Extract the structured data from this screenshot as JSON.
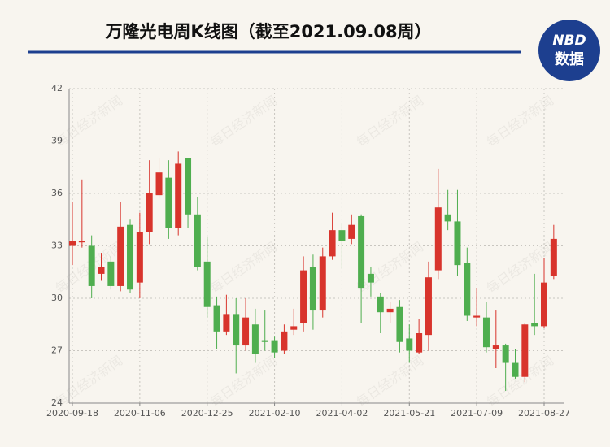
{
  "chart_data": {
    "type": "candlestick",
    "title": "万隆光电周K线图（截至2021.09.08周）",
    "logo": {
      "top": "NBD",
      "bottom": "数据"
    },
    "watermark": "每日经济新闻",
    "categories": [
      "2020-09-18",
      null,
      null,
      null,
      null,
      null,
      null,
      "2020-11-06",
      null,
      null,
      null,
      null,
      null,
      null,
      "2020-12-25",
      null,
      null,
      null,
      null,
      null,
      null,
      "2021-02-10",
      null,
      null,
      null,
      null,
      null,
      null,
      "2021-04-02",
      null,
      null,
      null,
      null,
      null,
      null,
      "2021-05-21",
      null,
      null,
      null,
      null,
      null,
      null,
      "2021-07-09",
      null,
      null,
      null,
      null,
      null,
      null,
      "2021-08-27",
      null
    ],
    "open": [
      33.0,
      33.2,
      33.0,
      31.4,
      32.1,
      30.7,
      34.2,
      30.9,
      33.8,
      35.9,
      36.9,
      34.0,
      38.0,
      34.8,
      32.1,
      29.6,
      28.1,
      29.1,
      27.3,
      28.5,
      27.6,
      27.6,
      27.0,
      28.2,
      28.6,
      31.8,
      29.3,
      32.4,
      33.9,
      33.4,
      34.7,
      31.4,
      30.1,
      29.2,
      29.5,
      27.7,
      26.9,
      27.9,
      31.6,
      34.8,
      34.4,
      32.0,
      28.9,
      28.9,
      27.1,
      27.3,
      26.3,
      25.5,
      28.6,
      28.4,
      31.3
    ],
    "high": [
      35.5,
      36.8,
      33.6,
      32.6,
      32.4,
      35.5,
      34.5,
      34.9,
      37.9,
      38.0,
      37.9,
      38.4,
      38.0,
      35.8,
      33.5,
      30.1,
      30.2,
      30.0,
      30.0,
      29.4,
      29.3,
      27.8,
      28.5,
      29.4,
      32.4,
      32.5,
      32.9,
      34.9,
      34.3,
      34.8,
      34.8,
      31.8,
      30.3,
      29.8,
      29.9,
      28.5,
      28.8,
      32.1,
      37.4,
      36.2,
      36.2,
      32.9,
      30.6,
      29.8,
      29.3,
      27.4,
      27.1,
      28.6,
      31.4,
      32.3,
      34.2
    ],
    "low": [
      31.9,
      32.9,
      30.0,
      31.0,
      30.5,
      30.4,
      30.3,
      30.0,
      33.1,
      35.7,
      33.4,
      33.6,
      34.0,
      31.6,
      28.9,
      27.1,
      27.9,
      25.7,
      27.0,
      26.3,
      27.0,
      26.6,
      26.8,
      27.9,
      28.1,
      28.2,
      28.9,
      32.2,
      31.7,
      33.1,
      28.6,
      30.1,
      28.0,
      28.6,
      26.9,
      26.3,
      26.8,
      27.0,
      31.1,
      33.9,
      31.3,
      28.7,
      28.4,
      26.9,
      26.0,
      24.7,
      25.4,
      25.2,
      27.9,
      28.3,
      31.1
    ],
    "close": [
      33.3,
      33.3,
      30.7,
      31.8,
      30.7,
      34.1,
      30.5,
      33.8,
      36.0,
      37.2,
      34.0,
      37.7,
      34.8,
      31.8,
      29.5,
      28.1,
      29.1,
      27.3,
      28.9,
      26.8,
      27.5,
      26.9,
      28.1,
      28.4,
      31.6,
      29.3,
      32.4,
      33.9,
      33.3,
      34.2,
      30.6,
      30.9,
      29.2,
      29.4,
      27.5,
      27.0,
      28.0,
      31.2,
      35.2,
      34.4,
      31.9,
      29.0,
      29.0,
      27.2,
      27.3,
      26.3,
      25.5,
      28.5,
      28.4,
      30.9,
      33.4
    ],
    "up_color": "#d8342c",
    "down_color": "#4fae4f",
    "ylim": [
      24,
      42
    ],
    "yticks": [
      24,
      27,
      30,
      33,
      36,
      39,
      42
    ],
    "grid": true
  }
}
